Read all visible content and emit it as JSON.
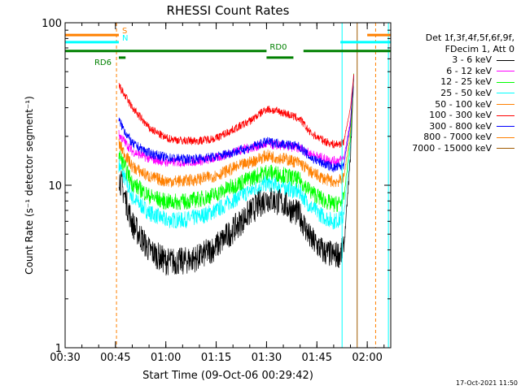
{
  "chart_data": {
    "type": "line",
    "title": "RHESSI Count Rates",
    "xlabel": "Start Time (09-Oct-06 00:29:42)",
    "ylabel": "Count Rate (s⁻¹ detector segment⁻¹)",
    "y_scale": "log",
    "ylim": [
      1,
      100
    ],
    "xlim": [
      "00:30",
      "02:07"
    ],
    "x_ticks": [
      "00:30",
      "00:45",
      "01:00",
      "01:15",
      "01:30",
      "01:45",
      "02:00"
    ],
    "y_ticks": [
      "1",
      "10",
      "100"
    ],
    "legend_header": [
      "Det 1f,3f,4f,5f,6f,9f,",
      "FDecim 1, Att 0"
    ],
    "series": [
      {
        "name": "3 - 6 keV",
        "color": "#000000",
        "x": [
          "00:46",
          "00:50",
          "00:55",
          "01:00",
          "01:05",
          "01:10",
          "01:15",
          "01:20",
          "01:25",
          "01:30",
          "01:35",
          "01:40",
          "01:43",
          "01:47",
          "01:50",
          "01:52",
          "01:53",
          "01:55",
          "01:56"
        ],
        "y": [
          11.5,
          5.8,
          4.0,
          3.4,
          3.4,
          3.6,
          4.2,
          5.3,
          6.8,
          8.3,
          7.7,
          6.5,
          4.7,
          3.9,
          3.7,
          3.8,
          4.0,
          15,
          48
        ]
      },
      {
        "name": "6 - 12 keV",
        "color": "#ff00ff",
        "x": [
          "00:46",
          "00:50",
          "00:55",
          "01:00",
          "01:05",
          "01:10",
          "01:15",
          "01:20",
          "01:25",
          "01:30",
          "01:35",
          "01:40",
          "01:43",
          "01:47",
          "01:50",
          "01:52",
          "01:53",
          "01:55",
          "01:56"
        ],
        "y": [
          20.5,
          16.2,
          14.6,
          13.9,
          13.9,
          14.1,
          14.7,
          16.0,
          17.0,
          17.9,
          17.5,
          16.9,
          15.6,
          14.6,
          14.1,
          14.3,
          14.6,
          25,
          48
        ]
      },
      {
        "name": "12 - 25 keV",
        "color": "#00ff00",
        "x": [
          "00:46",
          "00:50",
          "00:55",
          "01:00",
          "01:05",
          "01:10",
          "01:15",
          "01:20",
          "01:25",
          "01:30",
          "01:35",
          "01:40",
          "01:43",
          "01:47",
          "01:50",
          "01:52",
          "01:53",
          "01:55",
          "01:56"
        ],
        "y": [
          15.5,
          10.3,
          8.6,
          7.9,
          7.9,
          8.2,
          8.8,
          9.9,
          11.0,
          12.1,
          11.6,
          10.7,
          9.2,
          8.1,
          7.6,
          7.8,
          8.1,
          20,
          48
        ]
      },
      {
        "name": "25 - 50 keV",
        "color": "#00ffff",
        "x": [
          "00:46",
          "00:50",
          "00:55",
          "01:00",
          "01:05",
          "01:10",
          "01:15",
          "01:20",
          "01:25",
          "01:30",
          "01:35",
          "01:40",
          "01:43",
          "01:47",
          "01:50",
          "01:52",
          "01:53",
          "01:55",
          "01:56"
        ],
        "y": [
          13.5,
          8.4,
          6.8,
          6.1,
          6.1,
          6.4,
          7.0,
          8.1,
          9.2,
          10.3,
          9.8,
          9.0,
          7.4,
          6.4,
          6.0,
          6.2,
          6.4,
          18,
          48
        ]
      },
      {
        "name": "50 - 100 keV",
        "color": "#ff8000",
        "x": [
          "00:46",
          "00:50",
          "00:55",
          "01:00",
          "01:05",
          "01:10",
          "01:15",
          "01:20",
          "01:25",
          "01:30",
          "01:35",
          "01:40",
          "01:43",
          "01:47",
          "01:50",
          "01:52",
          "01:53",
          "01:55",
          "01:56"
        ],
        "y": [
          18.0,
          13.0,
          11.3,
          10.6,
          10.6,
          10.9,
          11.5,
          12.7,
          13.8,
          15.2,
          14.6,
          13.7,
          12.1,
          11.0,
          10.5,
          10.7,
          11.0,
          22,
          48
        ]
      },
      {
        "name": "100 - 300 keV",
        "color": "#ff0000",
        "x": [
          "00:46",
          "00:50",
          "00:55",
          "01:00",
          "01:05",
          "01:10",
          "01:15",
          "01:20",
          "01:25",
          "01:30",
          "01:35",
          "01:40",
          "01:43",
          "01:47",
          "01:50",
          "01:52",
          "01:53",
          "01:55",
          "01:56"
        ],
        "y": [
          41.0,
          30.0,
          22.5,
          19.5,
          18.8,
          18.8,
          19.5,
          22.0,
          24.8,
          29.5,
          28.0,
          25.5,
          21.0,
          18.8,
          17.8,
          18.0,
          18.5,
          30,
          48
        ]
      },
      {
        "name": "300 - 800 keV",
        "color": "#0000ff",
        "x": [
          "00:46",
          "00:50",
          "00:55",
          "01:00",
          "01:05",
          "01:10",
          "01:15",
          "01:20",
          "01:25",
          "01:30",
          "01:35",
          "01:40",
          "01:43",
          "01:47",
          "01:50",
          "01:52",
          "01:53",
          "01:55",
          "01:56"
        ],
        "y": [
          25.0,
          18.0,
          15.8,
          14.8,
          14.5,
          14.6,
          15.0,
          16.0,
          17.0,
          18.5,
          18.0,
          17.2,
          14.8,
          13.6,
          12.8,
          13.0,
          13.4,
          24,
          48
        ]
      },
      {
        "name": "800 - 7000 keV",
        "color": "#ff8000",
        "x": [],
        "y": []
      },
      {
        "name": "7000 - 15000 keV",
        "color": "#a05a00",
        "x": [],
        "y": []
      }
    ],
    "attenuator_bars": [
      {
        "label": "S",
        "color": "#ff8000",
        "level": 84,
        "segments": [
          [
            "00:30",
            "00:46"
          ],
          [
            "02:00",
            "02:07"
          ]
        ]
      },
      {
        "label": "N",
        "color": "#00ffff",
        "level": 76,
        "segments": [
          [
            "00:30",
            "00:46"
          ],
          [
            "01:52",
            "02:07"
          ]
        ]
      },
      {
        "label": "RD0",
        "color": "#008000",
        "level": 67,
        "segments": [
          [
            "00:30",
            "01:30"
          ],
          [
            "01:41",
            "02:07"
          ]
        ]
      },
      {
        "label": "RD6",
        "color": "#008000",
        "level": 61,
        "segments": [
          [
            "00:46",
            "00:48"
          ],
          [
            "01:30",
            "01:38"
          ]
        ]
      }
    ],
    "vertical_markers": [
      {
        "time": "00:30",
        "color": "#00ffff",
        "style": "solid"
      },
      {
        "time": "00:45.3",
        "color": "#ff8000",
        "style": "dashed"
      },
      {
        "time": "01:52.5",
        "color": "#00ffff",
        "style": "solid"
      },
      {
        "time": "01:57",
        "color": "#a05a00",
        "style": "solid"
      },
      {
        "time": "02:02.5",
        "color": "#ff8000",
        "style": "dashed"
      },
      {
        "time": "02:06.3",
        "color": "#00ffff",
        "style": "solid"
      }
    ],
    "grid": false
  },
  "footer_timestamp": "17-Oct-2021 11:50"
}
